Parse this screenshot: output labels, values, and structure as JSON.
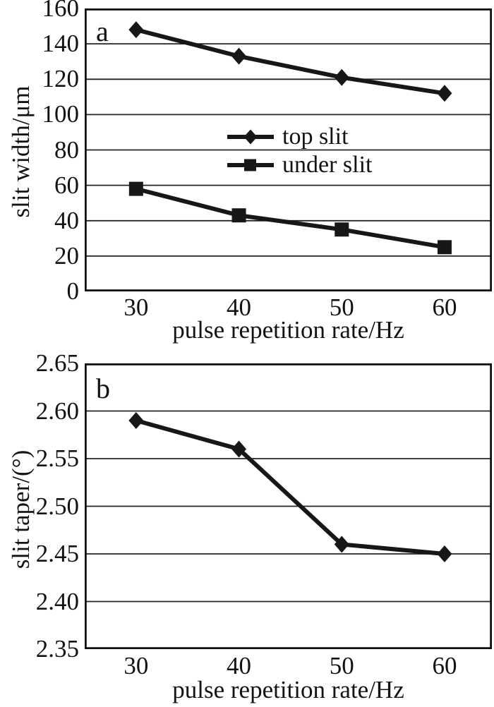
{
  "page": {
    "background_color": "#ffffff",
    "ink_color": "#171717"
  },
  "chart_data": [
    {
      "type": "line",
      "panel_label": "a",
      "title": "",
      "xlabel": "pulse repetition rate/Hz",
      "ylabel": "slit width/μm",
      "x": [
        30,
        40,
        50,
        60
      ],
      "xtick_labels": [
        "30",
        "40",
        "50",
        "60"
      ],
      "xlim": [
        25.0,
        64.6
      ],
      "ylim": [
        0,
        160
      ],
      "yticks": [
        0,
        20,
        40,
        60,
        80,
        100,
        120,
        140,
        160
      ],
      "ytick_labels": [
        "0",
        "20",
        "40",
        "60",
        "80",
        "100",
        "120",
        "140",
        "160"
      ],
      "grid": "horizontal",
      "legend_position": "inside-center",
      "series": [
        {
          "name": "top slit",
          "marker": "diamond",
          "values": [
            148,
            133,
            121,
            112
          ]
        },
        {
          "name": "under slit",
          "marker": "square",
          "values": [
            58,
            43,
            35,
            25
          ]
        }
      ]
    },
    {
      "type": "line",
      "panel_label": "b",
      "title": "",
      "xlabel": "pulse repetition rate/Hz",
      "ylabel": "slit taper/(°)",
      "x": [
        30,
        40,
        50,
        60
      ],
      "xtick_labels": [
        "30",
        "40",
        "50",
        "60"
      ],
      "xlim": [
        25.0,
        64.6
      ],
      "ylim": [
        2.35,
        2.65
      ],
      "yticks": [
        2.35,
        2.4,
        2.45,
        2.5,
        2.55,
        2.6,
        2.65
      ],
      "ytick_labels": [
        "2.35",
        "2.40",
        "2.45",
        "2.50",
        "2.55",
        "2.60",
        "2.65"
      ],
      "grid": "horizontal",
      "legend_position": "none",
      "series": [
        {
          "name": "slit taper",
          "marker": "diamond",
          "values": [
            2.59,
            2.56,
            2.46,
            2.45
          ]
        }
      ]
    }
  ]
}
